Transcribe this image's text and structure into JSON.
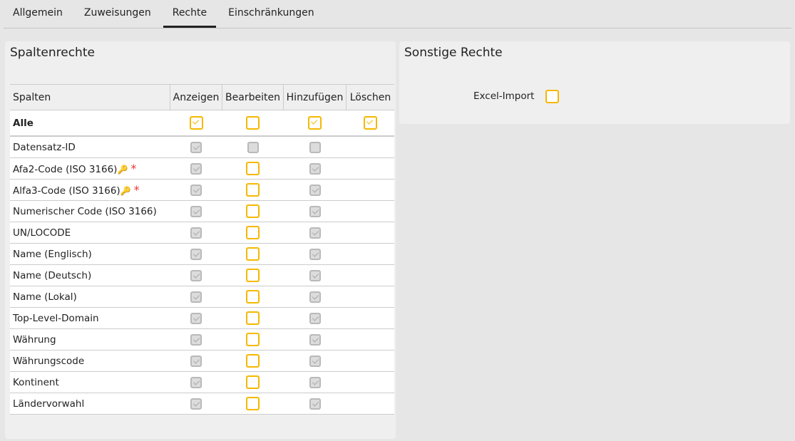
{
  "tabs": [
    {
      "label": "Allgemein"
    },
    {
      "label": "Zuweisungen"
    },
    {
      "label": "Rechte",
      "active": true
    },
    {
      "label": "Einschränkungen"
    }
  ],
  "left": {
    "title": "Spaltenrechte",
    "headers": [
      "Spalten",
      "Anzeigen",
      "Bearbeiten",
      "Hinzufügen",
      "Löschen"
    ],
    "all": {
      "label": "Alle",
      "anzeigen": true,
      "bearbeiten": false,
      "hinzufuegen": true,
      "loeschen": true
    },
    "rows": [
      {
        "label": "Datensatz-ID",
        "anzeigen": true,
        "bearbeiten": false,
        "hinzufuegen": false,
        "disabledAll": true
      },
      {
        "label": "Afa2-Code (ISO 3166)",
        "key": true,
        "required": true,
        "anzeigen": true,
        "bearbeiten": false,
        "hinzufuegen": true
      },
      {
        "label": "Alfa3-Code (ISO 3166)",
        "key": true,
        "required": true,
        "anzeigen": true,
        "bearbeiten": false,
        "hinzufuegen": true
      },
      {
        "label": "Numerischer Code (ISO 3166)",
        "anzeigen": true,
        "bearbeiten": false,
        "hinzufuegen": true
      },
      {
        "label": "UN/LOCODE",
        "anzeigen": true,
        "bearbeiten": false,
        "hinzufuegen": true
      },
      {
        "label": "Name (Englisch)",
        "anzeigen": true,
        "bearbeiten": false,
        "hinzufuegen": true
      },
      {
        "label": "Name (Deutsch)",
        "anzeigen": true,
        "bearbeiten": false,
        "hinzufuegen": true
      },
      {
        "label": "Name (Lokal)",
        "anzeigen": true,
        "bearbeiten": false,
        "hinzufuegen": true
      },
      {
        "label": "Top-Level-Domain",
        "anzeigen": true,
        "bearbeiten": false,
        "hinzufuegen": true
      },
      {
        "label": "Währung",
        "anzeigen": true,
        "bearbeiten": false,
        "hinzufuegen": true
      },
      {
        "label": "Währungscode",
        "anzeigen": true,
        "bearbeiten": false,
        "hinzufuegen": true
      },
      {
        "label": "Kontinent",
        "anzeigen": true,
        "bearbeiten": false,
        "hinzufuegen": true
      },
      {
        "label": "Ländervorwahl",
        "anzeigen": true,
        "bearbeiten": false,
        "hinzufuegen": true
      }
    ],
    "key_icon": "key-icon",
    "required_mark": "*"
  },
  "right": {
    "title": "Sonstige Rechte",
    "excel_label": "Excel-Import",
    "excel_checked": false
  },
  "colors": {
    "accent": "#f5b800",
    "disabled": "#b9b9b9",
    "required": "#e33333"
  }
}
